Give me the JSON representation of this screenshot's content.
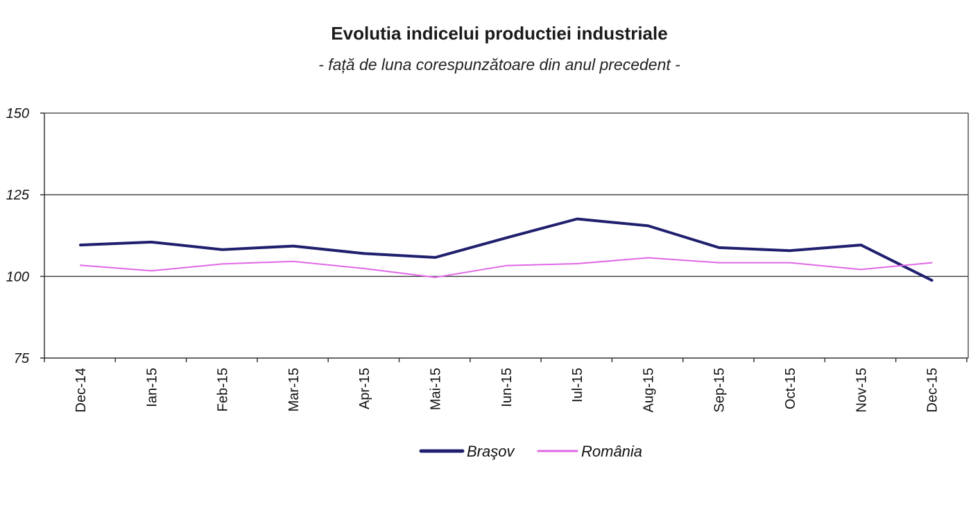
{
  "chart_data": {
    "type": "line",
    "title": "Evolutia indicelui productiei industriale",
    "subtitle": "- față de luna corespunzătoare din anul precedent -",
    "categories": [
      "Dec-14",
      "Ian-15",
      "Feb-15",
      "Mar-15",
      "Apr-15",
      "Mai-15",
      "Iun-15",
      "Iul-15",
      "Aug-15",
      "Sep-15",
      "Oct-15",
      "Nov-15",
      "Dec-15"
    ],
    "series": [
      {
        "name": "Braşov",
        "color": "#1f1f6e",
        "values": [
          109.6,
          110.5,
          108.2,
          109.3,
          107.0,
          105.8,
          111.8,
          117.6,
          115.5,
          108.8,
          107.9,
          109.6,
          98.8
        ]
      },
      {
        "name": "România",
        "color": "#e066e6",
        "values": [
          103.4,
          101.7,
          103.8,
          104.6,
          102.4,
          99.7,
          103.3,
          103.9,
          105.7,
          104.2,
          104.2,
          102.1,
          104.2
        ]
      }
    ],
    "y_ticks": [
      "150",
      "125",
      "100",
      "75"
    ],
    "ylim": [
      75,
      150
    ],
    "grid": "horizontal at 125 and 100",
    "legend": "bottom"
  }
}
